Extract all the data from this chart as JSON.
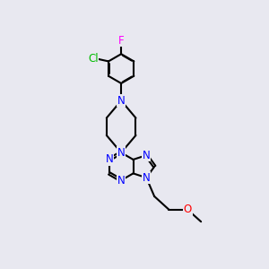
{
  "bg_color": "#e8e8f0",
  "bond_color": "#000000",
  "N_color": "#0000ff",
  "O_color": "#ff0000",
  "Cl_color": "#00bb00",
  "F_color": "#ff00ff",
  "line_width": 1.5,
  "dbo": 0.045,
  "font_size": 8.5,
  "fig_width": 3.0,
  "fig_height": 3.0,
  "dpi": 100,
  "xlim": [
    0.5,
    6.5
  ],
  "ylim": [
    0.5,
    10.5
  ]
}
